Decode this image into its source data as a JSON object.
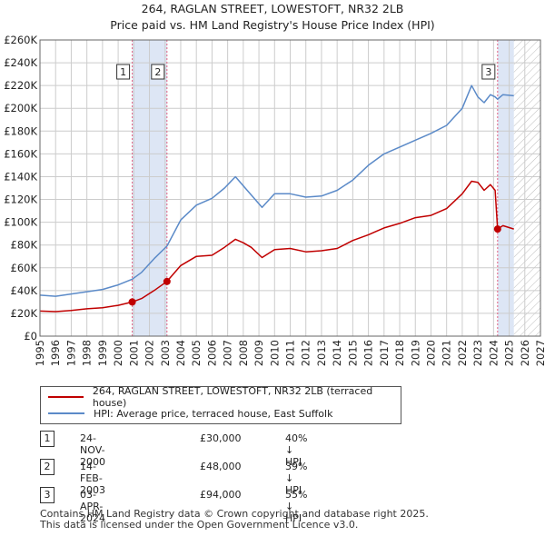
{
  "title_line1": "264, RAGLAN STREET, LOWESTOFT, NR32 2LB",
  "title_line2": "Price paid vs. HM Land Registry's House Price Index (HPI)",
  "colors": {
    "property": "#c00000",
    "hpi": "#5b8ac8",
    "marker_line": "#e06080",
    "band": "#dde6f5",
    "grid": "#cccccc"
  },
  "legend": {
    "property": "264, RAGLAN STREET, LOWESTOFT, NR32 2LB (terraced house)",
    "hpi": "HPI: Average price, terraced house, East Suffolk"
  },
  "transactions": [
    {
      "num": "1",
      "date": "24-NOV-2000",
      "price": "£30,000",
      "hpi": "40% ↓ HPI"
    },
    {
      "num": "2",
      "date": "14-FEB-2003",
      "price": "£48,000",
      "hpi": "39% ↓ HPI"
    },
    {
      "num": "3",
      "date": "03-APR-2024",
      "price": "£94,000",
      "hpi": "55% ↓ HPI"
    }
  ],
  "footer_line1": "Contains HM Land Registry data © Crown copyright and database right 2025.",
  "footer_line2": "This data is licensed under the Open Government Licence v3.0.",
  "chart_data": {
    "type": "line",
    "title": "264, RAGLAN STREET, LOWESTOFT, NR32 2LB — Price paid vs. HM Land Registry's House Price Index (HPI)",
    "xlim": [
      1995,
      2027
    ],
    "ylim": [
      0,
      260000
    ],
    "y_ticks": [
      0,
      20000,
      40000,
      60000,
      80000,
      100000,
      120000,
      140000,
      160000,
      180000,
      200000,
      220000,
      240000,
      260000
    ],
    "y_tick_labels": [
      "£0",
      "£20K",
      "£40K",
      "£60K",
      "£80K",
      "£100K",
      "£120K",
      "£140K",
      "£160K",
      "£180K",
      "£200K",
      "£220K",
      "£240K",
      "£260K"
    ],
    "x_ticks": [
      1995,
      1996,
      1997,
      1998,
      1999,
      2000,
      2001,
      2002,
      2003,
      2004,
      2005,
      2006,
      2007,
      2008,
      2009,
      2010,
      2011,
      2012,
      2013,
      2014,
      2015,
      2016,
      2017,
      2018,
      2019,
      2020,
      2021,
      2022,
      2023,
      2024,
      2025,
      2026,
      2027
    ],
    "x_tick_labels": [
      "1995",
      "1996",
      "1997",
      "1998",
      "1999",
      "2000",
      "2001",
      "2002",
      "2003",
      "2004",
      "2005",
      "2006",
      "2007",
      "2008",
      "2009",
      "2010",
      "2011",
      "2012",
      "2013",
      "2014",
      "2015",
      "2016",
      "2017",
      "2018",
      "2019",
      "2020",
      "2021",
      "2022",
      "2023",
      "2024",
      "2025",
      "2026",
      "2027"
    ],
    "shaded_ranges": [
      [
        2000.9,
        2003.12
      ],
      [
        2024.26,
        2025.3
      ]
    ],
    "hatched_range": [
      2025.3,
      2027
    ],
    "sale_markers": [
      {
        "label": "1",
        "x": 2000.9,
        "y": 30000
      },
      {
        "label": "2",
        "x": 2003.12,
        "y": 48000
      },
      {
        "label": "3",
        "x": 2024.26,
        "y": 94000
      }
    ],
    "series": [
      {
        "name": "264, RAGLAN STREET, LOWESTOFT, NR32 2LB (terraced house)",
        "x": [
          1995,
          1996,
          1997,
          1998,
          1999,
          2000,
          2000.9,
          2001.5,
          2002.3,
          2003.12,
          2004,
          2005,
          2006,
          2006.8,
          2007.5,
          2008,
          2008.5,
          2009.2,
          2010,
          2011,
          2012,
          2013,
          2014,
          2015,
          2016,
          2017,
          2018,
          2019,
          2020,
          2021,
          2022,
          2022.6,
          2023,
          2023.4,
          2023.8,
          2024.1,
          2024.26,
          2024.6,
          2025.3
        ],
        "values": [
          22000,
          21500,
          22500,
          24000,
          25000,
          27000,
          30000,
          33000,
          40000,
          48000,
          62000,
          70000,
          71000,
          78000,
          85000,
          82000,
          78000,
          69000,
          76000,
          77000,
          74000,
          75000,
          77000,
          84000,
          89000,
          95000,
          99000,
          104000,
          106000,
          112000,
          125000,
          136000,
          135000,
          128000,
          133000,
          128000,
          94000,
          97000,
          94000
        ]
      },
      {
        "name": "HPI: Average price, terraced house, East Suffolk",
        "x": [
          1995,
          1996,
          1997,
          1998,
          1999,
          2000,
          2000.9,
          2001.5,
          2002.3,
          2003.12,
          2004,
          2005,
          2006,
          2006.8,
          2007.5,
          2008,
          2008.5,
          2009.2,
          2010,
          2011,
          2012,
          2013,
          2014,
          2015,
          2016,
          2017,
          2018,
          2019,
          2020,
          2021,
          2022,
          2022.6,
          2023,
          2023.4,
          2023.8,
          2024.1,
          2024.26,
          2024.6,
          2025.3
        ],
        "values": [
          36000,
          35000,
          37000,
          39000,
          41000,
          45000,
          50000,
          56000,
          68000,
          79000,
          102000,
          115000,
          121000,
          130000,
          140000,
          132000,
          124000,
          113000,
          125000,
          125000,
          122000,
          123000,
          128000,
          137000,
          150000,
          160000,
          166000,
          172000,
          178000,
          185000,
          200000,
          220000,
          210000,
          205000,
          212000,
          210000,
          208000,
          212000,
          211000
        ]
      }
    ]
  }
}
